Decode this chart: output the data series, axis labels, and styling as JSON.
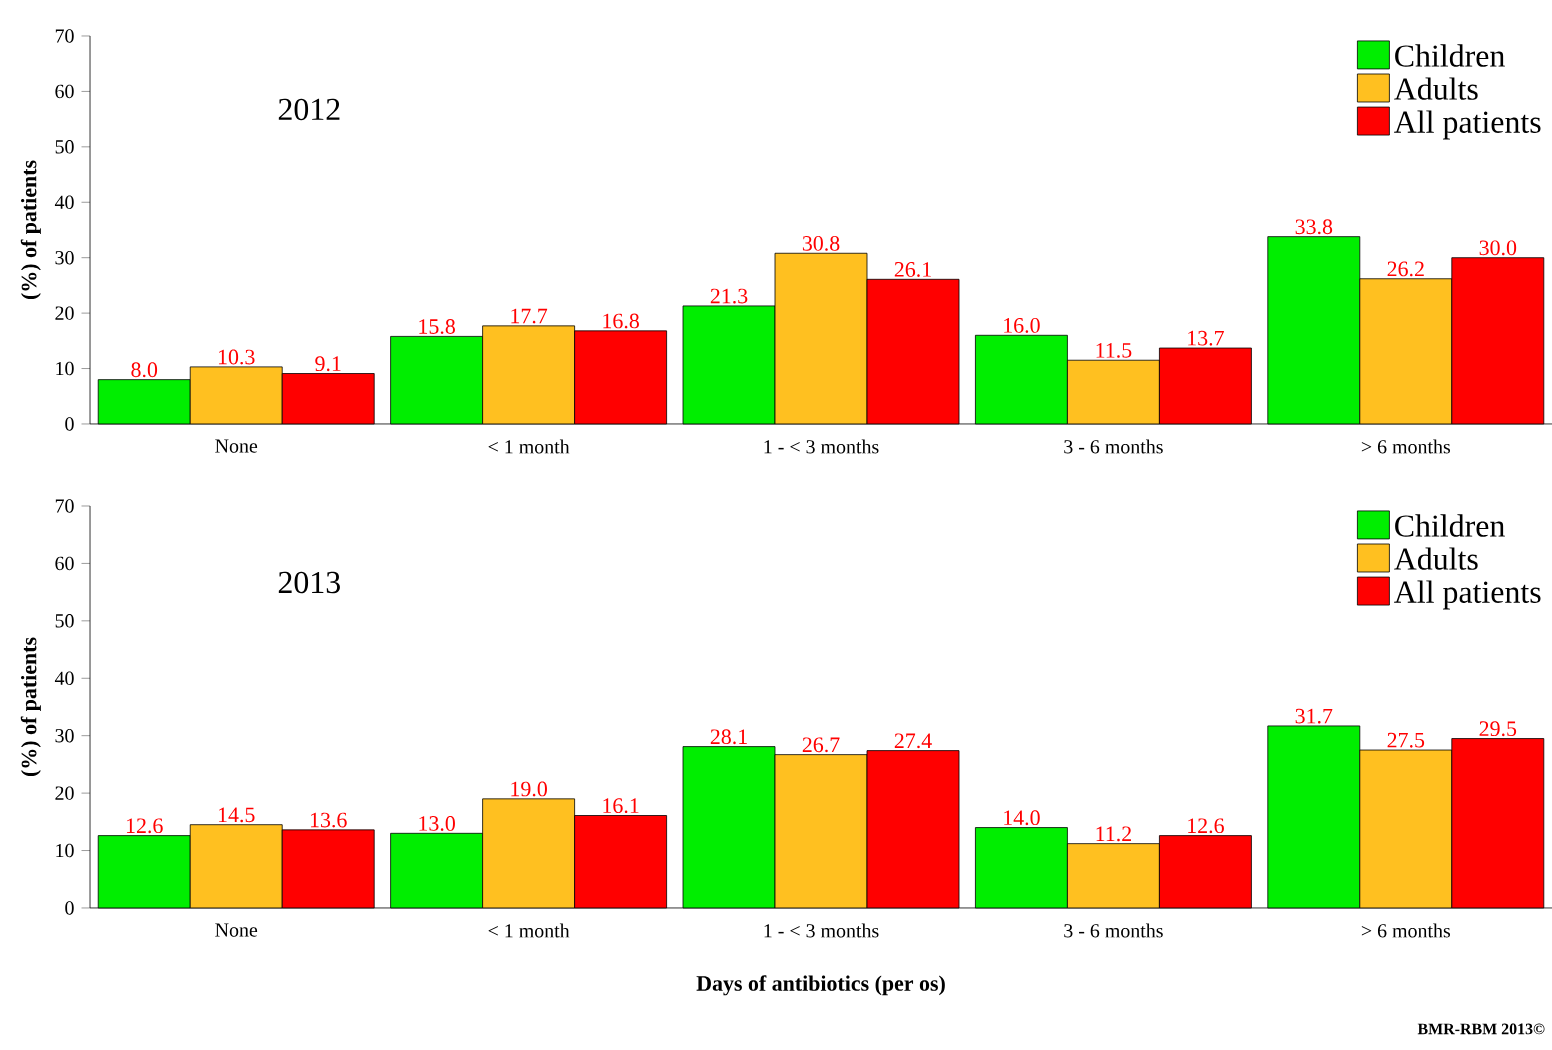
{
  "chart_data": [
    {
      "type": "bar",
      "title": "2012",
      "ylabel": "(%) of patients",
      "categories": [
        "None",
        "< 1 month",
        "1 - < 3 months",
        "3 - 6 months",
        "> 6 months"
      ],
      "series": [
        {
          "name": "Children",
          "color": "#00ee00",
          "values": [
            8.0,
            15.8,
            21.3,
            16.0,
            33.8
          ],
          "value_labels": [
            "8.0",
            "15.8",
            "21.3",
            "16.0",
            "33.8"
          ]
        },
        {
          "name": "Adults",
          "color": "#ffc020",
          "values": [
            10.3,
            17.7,
            30.8,
            11.5,
            26.2
          ],
          "value_labels": [
            "10.3",
            "17.7",
            "30.8",
            "11.5",
            "26.2"
          ]
        },
        {
          "name": "All patients",
          "color": "#ff0000",
          "values": [
            9.1,
            16.8,
            26.1,
            13.7,
            30.0
          ],
          "value_labels": [
            "9.1",
            "16.8",
            "26.1",
            "13.7",
            "30.0"
          ]
        }
      ],
      "ylim": [
        0,
        70
      ],
      "yticks": [
        0,
        10,
        20,
        30,
        40,
        50,
        60,
        70
      ],
      "legend": "top right"
    },
    {
      "type": "bar",
      "title": "2013",
      "ylabel": "(%) of patients",
      "xlabel": "Days of antibiotics (per os)",
      "categories": [
        "None",
        "< 1 month",
        "1 - < 3 months",
        "3 - 6 months",
        "> 6 months"
      ],
      "series": [
        {
          "name": "Children",
          "color": "#00ee00",
          "values": [
            12.6,
            13.0,
            28.1,
            14.0,
            31.7
          ],
          "value_labels": [
            "12.6",
            "13.0",
            "28.1",
            "14.0",
            "31.7"
          ]
        },
        {
          "name": "Adults",
          "color": "#ffc020",
          "values": [
            14.5,
            19.0,
            26.7,
            11.2,
            27.5
          ],
          "value_labels": [
            "14.5",
            "19.0",
            "26.7",
            "11.2",
            "27.5"
          ]
        },
        {
          "name": "All patients",
          "color": "#ff0000",
          "values": [
            13.6,
            16.1,
            27.4,
            12.6,
            29.5
          ],
          "value_labels": [
            "13.6",
            "16.1",
            "27.4",
            "12.6",
            "29.5"
          ]
        }
      ],
      "ylim": [
        0,
        70
      ],
      "yticks": [
        0,
        10,
        20,
        30,
        40,
        50,
        60,
        70
      ],
      "legend": "top right",
      "annotations": [
        "BMR-RBM 2013©"
      ]
    }
  ]
}
